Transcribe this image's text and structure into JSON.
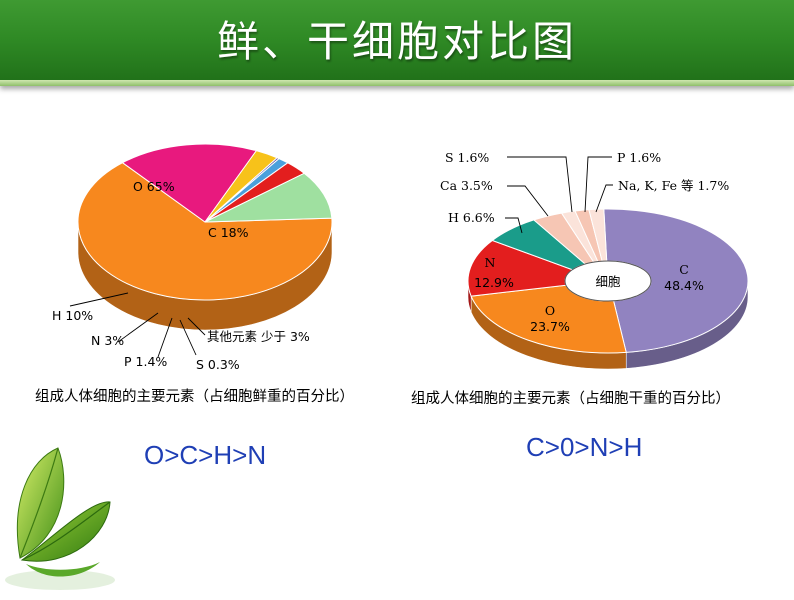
{
  "header": {
    "title": "鲜、干细胞对比图"
  },
  "chart_data": [
    {
      "type": "pie",
      "title": "",
      "caption": "组成人体细胞的主要元素（占细胞鲜重的百分比）",
      "labels": [
        "O 65%",
        "C 18%",
        "其他元素 少于 3%",
        "S 0.3%",
        "P 1.4%",
        "N 3%",
        "H 10%"
      ],
      "slices": [
        {
          "name": "O",
          "value": 65,
          "color": "#f7881e"
        },
        {
          "name": "C",
          "value": 18,
          "color": "#e8197e"
        },
        {
          "name": "其他元素",
          "value": 3,
          "color": "#f7c21a"
        },
        {
          "name": "S",
          "value": 0.3,
          "color": "#5b4fa8"
        },
        {
          "name": "P",
          "value": 1.4,
          "color": "#4aa0dc"
        },
        {
          "name": "N",
          "value": 3,
          "color": "#e31e1e"
        },
        {
          "name": "H",
          "value": 10,
          "color": "#9fe0a0"
        }
      ],
      "order": "O>C>H>N"
    },
    {
      "type": "pie",
      "title": "",
      "caption": "组成人体细胞的主要元素（占细胞干重的百分比）",
      "center_label": "细胞",
      "slices": [
        {
          "name": "C",
          "label": "C",
          "pct_label": "48.4%",
          "value": 48.4,
          "color": "#9183c0"
        },
        {
          "name": "O",
          "label": "O",
          "pct_label": "23.7%",
          "value": 23.7,
          "color": "#f7881e"
        },
        {
          "name": "N",
          "label": "N",
          "pct_label": "12.9%",
          "value": 12.9,
          "color": "#e31e1e"
        },
        {
          "name": "H",
          "label": "H 6.6%",
          "value": 6.6,
          "color": "#1a9c8a"
        },
        {
          "name": "Ca",
          "label": "Ca 3.5%",
          "value": 3.5,
          "color": "#f6c6b4"
        },
        {
          "name": "S",
          "label": "S 1.6%",
          "value": 1.6,
          "color": "#fbe3da"
        },
        {
          "name": "P",
          "label": "P 1.6%",
          "value": 1.6,
          "color": "#f6c6b4"
        },
        {
          "name": "Na, K, Fe",
          "label": "Na, K, Fe 等 1.7%",
          "value": 1.7,
          "color": "#fbe3da"
        }
      ],
      "order": "C>0>N>H"
    }
  ]
}
